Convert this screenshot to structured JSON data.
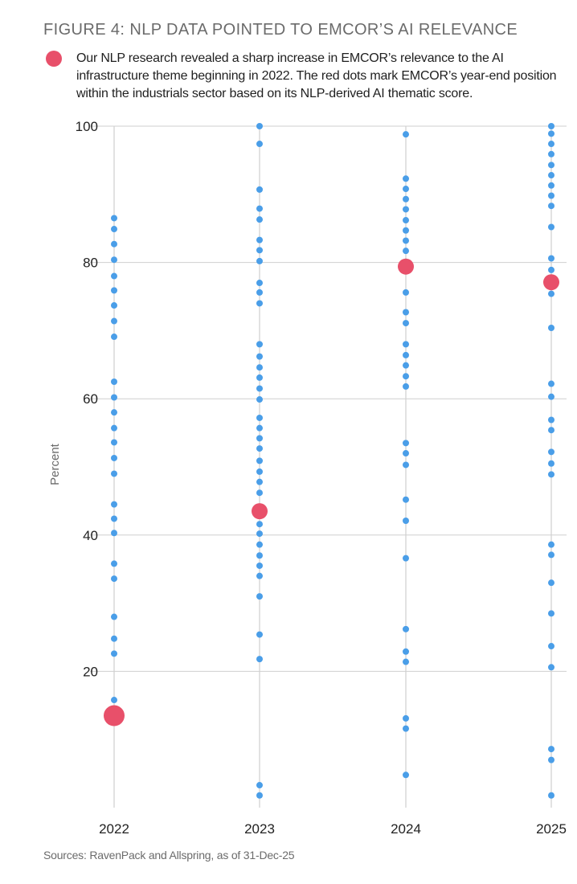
{
  "header": {
    "title": "FIGURE 4: NLP DATA POINTED TO EMCOR’S AI RELEVANCE",
    "legend_text": "Our NLP research revealed a sharp increase in EMCOR’s relevance to the AI infrastructure theme beginning in 2022. The red dots mark EMCOR’s year-end position within the industrials sector based on its NLP-derived AI thematic score."
  },
  "footer": {
    "source": "Sources: RavenPack and Allspring, as of 31-Dec-25"
  },
  "colors": {
    "highlight": "#e8506a",
    "peer": "#4a9ee8",
    "grid": "#cfcfcf",
    "axis_text": "#222222",
    "muted_text": "#6b6b6b"
  },
  "chart_data": {
    "type": "scatter",
    "title": "FIGURE 4: NLP DATA POINTED TO EMCOR’S AI RELEVANCE",
    "xlabel": "",
    "ylabel": "Percent",
    "categories": [
      "2022",
      "2023",
      "2024",
      "2025"
    ],
    "ylim": [
      0,
      100
    ],
    "yticks": [
      20,
      40,
      60,
      80,
      100
    ],
    "grid": true,
    "legend": "top-left",
    "series": [
      {
        "role": "peers",
        "points": [
          {
            "x": "2022",
            "values": [
              86.5,
              84.9,
              82.7,
              80.4,
              78.0,
              75.9,
              73.7,
              71.4,
              69.1,
              62.5,
              60.2,
              58.0,
              55.7,
              53.6,
              51.3,
              49.0,
              44.5,
              42.4,
              40.3,
              35.8,
              33.6,
              28.0,
              24.8,
              22.6,
              15.8
            ]
          },
          {
            "x": "2023",
            "values": [
              100.0,
              97.4,
              90.7,
              87.9,
              86.3,
              83.3,
              81.8,
              80.2,
              77.0,
              75.6,
              74.0,
              68.0,
              66.2,
              64.6,
              63.1,
              61.5,
              59.9,
              57.2,
              55.7,
              54.2,
              52.7,
              50.9,
              49.3,
              47.8,
              46.2,
              41.6,
              40.2,
              38.6,
              37.0,
              35.5,
              34.0,
              31.0,
              25.4,
              21.8,
              3.3,
              1.8
            ]
          },
          {
            "x": "2024",
            "values": [
              98.8,
              92.3,
              90.8,
              89.3,
              87.8,
              86.2,
              84.7,
              83.2,
              81.7,
              80.1,
              78.7,
              75.6,
              72.7,
              71.1,
              68.0,
              66.4,
              64.9,
              63.3,
              61.8,
              53.5,
              52.0,
              50.3,
              45.2,
              42.1,
              36.6,
              26.2,
              22.9,
              21.4,
              13.1,
              11.6,
              4.8
            ]
          },
          {
            "x": "2025",
            "values": [
              100.0,
              98.9,
              97.4,
              95.9,
              94.3,
              92.8,
              91.3,
              89.8,
              88.3,
              85.2,
              80.6,
              78.9,
              77.5,
              75.4,
              70.4,
              62.2,
              60.3,
              56.9,
              55.4,
              52.2,
              50.5,
              48.9,
              38.6,
              37.1,
              33.0,
              28.5,
              23.7,
              20.6,
              8.6,
              7.0,
              1.8
            ]
          }
        ]
      },
      {
        "role": "EMCOR",
        "points": [
          {
            "x": "2022",
            "value": 13.5,
            "size": "large"
          },
          {
            "x": "2023",
            "value": 43.5,
            "size": "medium"
          },
          {
            "x": "2024",
            "value": 79.4,
            "size": "medium"
          },
          {
            "x": "2025",
            "value": 77.1,
            "size": "medium"
          }
        ]
      }
    ]
  }
}
